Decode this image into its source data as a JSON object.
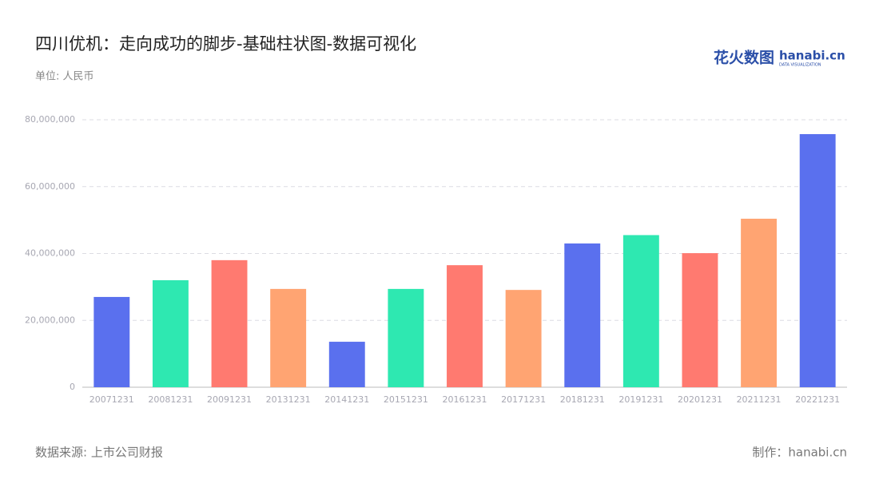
{
  "chart_data": {
    "type": "bar",
    "title": "四川优机：走向成功的脚步-基础柱状图-数据可视化",
    "subtitle": "单位: 人民币",
    "source": "数据来源: 上市公司财报",
    "credit": "制作：hanabi.cn",
    "categories": [
      "20071231",
      "20081231",
      "20091231",
      "20131231",
      "20141231",
      "20151231",
      "20161231",
      "20171231",
      "20181231",
      "20191231",
      "20201231",
      "20211231",
      "20221231"
    ],
    "values": [
      27000000,
      32000000,
      38000000,
      29400000,
      13600000,
      29400000,
      36500000,
      29100000,
      43000000,
      45500000,
      40100000,
      50400000,
      75700000
    ],
    "colors": [
      "#5a70ee",
      "#2ee8b1",
      "#ff7a70",
      "#ffa472",
      "#5a70ee",
      "#2ee8b1",
      "#ff7a70",
      "#ffa472",
      "#5a70ee",
      "#2ee8b1",
      "#ff7a70",
      "#ffa472",
      "#5a70ee"
    ],
    "ylim": [
      0,
      80000000
    ],
    "yticks": [
      0,
      {
        "value": 20000000,
        "label": "20,000,000"
      },
      {
        "value": 40000000,
        "label": "40,000,000"
      },
      {
        "value": 60000000,
        "label": "60,000,000"
      },
      {
        "value": 80000000,
        "label": "80,000,000"
      }
    ],
    "grid": true
  },
  "logo": {
    "name": "花火数图",
    "brand": "hanabi.cn",
    "tagline": "DATA VISUALIZATION"
  }
}
